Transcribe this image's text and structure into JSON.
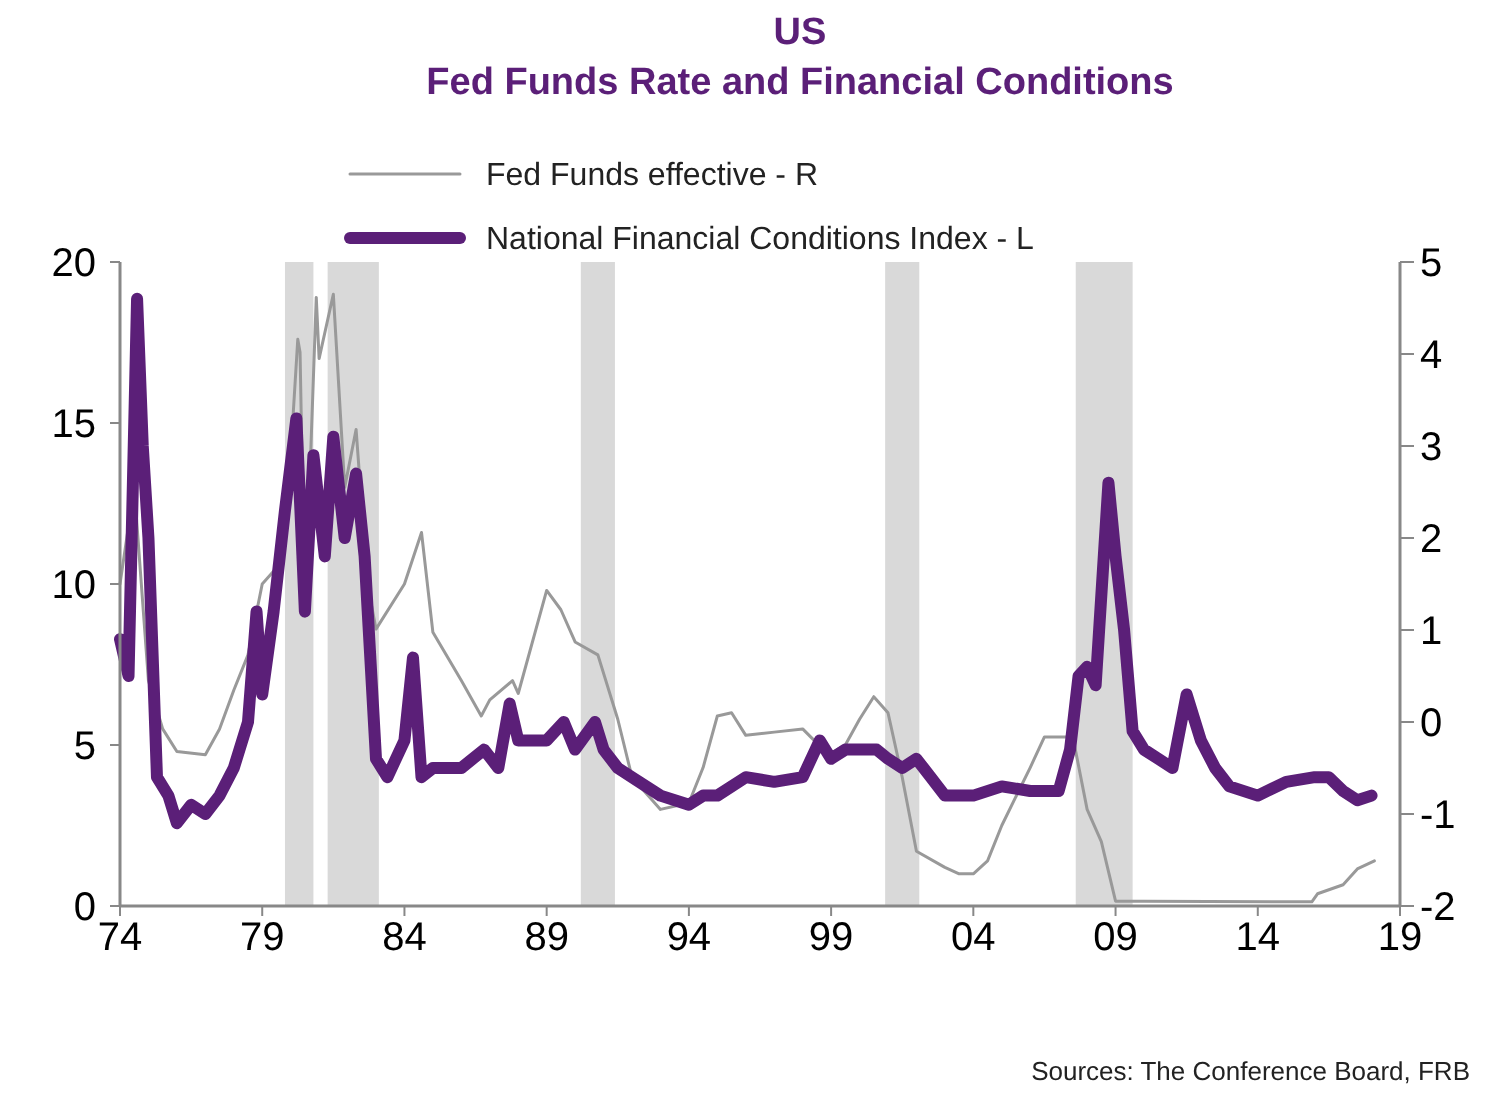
{
  "chart_data": {
    "type": "line",
    "title": "US",
    "subtitle": "Fed Funds Rate and Financial Conditions",
    "annotations": [
      "Sources: The Conference Board, FRB"
    ],
    "xlim": [
      1974,
      2019
    ],
    "xticks": [
      {
        "value": 1974,
        "label": "74"
      },
      {
        "value": 1979,
        "label": "79"
      },
      {
        "value": 1984,
        "label": "84"
      },
      {
        "value": 1989,
        "label": "89"
      },
      {
        "value": 1994,
        "label": "94"
      },
      {
        "value": 1999,
        "label": "99"
      },
      {
        "value": 2004,
        "label": "04"
      },
      {
        "value": 2009,
        "label": "09"
      },
      {
        "value": 2014,
        "label": "14"
      },
      {
        "value": 2019,
        "label": "19"
      }
    ],
    "ylim": [
      0,
      20
    ],
    "yticks": [
      0,
      5,
      10,
      15,
      20
    ],
    "y2lim": [
      -2,
      5
    ],
    "y2ticks": [
      -2,
      -1,
      0,
      1,
      2,
      3,
      4,
      5
    ],
    "grid": false,
    "legend": "top",
    "bands": [
      {
        "axis": "x",
        "from": 1979.8,
        "to": 1980.8,
        "color": "#d9d9d9"
      },
      {
        "axis": "x",
        "from": 1981.3,
        "to": 1983.1,
        "color": "#d9d9d9"
      },
      {
        "axis": "x",
        "from": 1990.2,
        "to": 1991.4,
        "color": "#d9d9d9"
      },
      {
        "axis": "x",
        "from": 2000.9,
        "to": 2002.1,
        "color": "#d9d9d9"
      },
      {
        "axis": "x",
        "from": 2007.6,
        "to": 2009.6,
        "color": "#d9d9d9"
      }
    ],
    "series": [
      {
        "name": "Fed Funds effective - R",
        "color": "#999999",
        "axis": "y",
        "x": [
          1974,
          1974.5,
          1975,
          1975.5,
          1976,
          1977,
          1977.5,
          1978,
          1978.5,
          1979,
          1979.5,
          1980,
          1980.25,
          1980.33,
          1980.5,
          1980.9,
          1981,
          1981.5,
          1981.9,
          1982.3,
          1982.7,
          1983,
          1984,
          1984.6,
          1985,
          1986,
          1986.7,
          1987,
          1987.8,
          1988,
          1989,
          1989.5,
          1990,
          1990.8,
          1991.5,
          1992,
          1993,
          1994,
          1994.5,
          1995,
          1995.5,
          1996,
          1997,
          1998,
          1998.9,
          1999.5,
          2000,
          2000.5,
          2001,
          2001.5,
          2002,
          2003,
          2003.5,
          2004,
          2004.5,
          2005,
          2006,
          2006.5,
          2007.5,
          2008,
          2008.5,
          2009,
          2010,
          2015.9,
          2016.1,
          2017,
          2017.5,
          2018.1
        ],
        "values": [
          10,
          13,
          7,
          5.5,
          4.8,
          4.7,
          5.5,
          6.7,
          7.8,
          10,
          10.5,
          14,
          17.6,
          17.2,
          9,
          18.9,
          17,
          19,
          13,
          14.8,
          10,
          8.6,
          10,
          11.6,
          8.5,
          7,
          5.9,
          6.4,
          7,
          6.6,
          9.8,
          9.2,
          8.2,
          7.8,
          5.8,
          4,
          3,
          3.2,
          4.3,
          5.9,
          6,
          5.3,
          5.4,
          5.5,
          4.7,
          5,
          5.8,
          6.5,
          6,
          4,
          1.7,
          1.2,
          1,
          1,
          1.4,
          2.5,
          4.3,
          5.25,
          5.25,
          3,
          2,
          0.15,
          0.15,
          0.13,
          0.38,
          0.66,
          1.15,
          1.4
        ]
      },
      {
        "name": "National Financial Conditions Index - L",
        "color": "#5b1f78",
        "axis": "y2",
        "x": [
          1974,
          1974.3,
          1974.6,
          1974.8,
          1975,
          1975.3,
          1975.7,
          1976,
          1976.5,
          1977,
          1977.5,
          1978,
          1978.5,
          1978.8,
          1979,
          1979.4,
          1979.8,
          1980.2,
          1980.5,
          1980.8,
          1981.2,
          1981.5,
          1981.9,
          1982.3,
          1982.6,
          1983,
          1983.4,
          1984,
          1984.3,
          1984.6,
          1985,
          1986,
          1986.8,
          1987.3,
          1987.7,
          1988,
          1989,
          1989.6,
          1990,
          1990.7,
          1991,
          1991.5,
          1992,
          1993,
          1994,
          1994.5,
          1995,
          1996,
          1997,
          1998,
          1998.6,
          1999,
          1999.5,
          2000,
          2000.6,
          2001,
          2001.5,
          2002,
          2002.5,
          2003,
          2004,
          2005,
          2006,
          2007,
          2007.4,
          2007.7,
          2008,
          2008.3,
          2008.75,
          2009,
          2009.3,
          2009.6,
          2010,
          2010.5,
          2011,
          2011.5,
          2012,
          2012.5,
          2013,
          2014,
          2015,
          2016,
          2016.5,
          2017,
          2017.5,
          2018
        ],
        "values": [
          0.9,
          0.5,
          4.6,
          3,
          2,
          -0.6,
          -0.8,
          -1.1,
          -0.9,
          -1,
          -0.8,
          -0.5,
          0,
          1.2,
          0.3,
          1.2,
          2.3,
          3.3,
          1.2,
          2.9,
          1.8,
          3.1,
          2,
          2.7,
          1.8,
          -0.4,
          -0.6,
          -0.2,
          0.7,
          -0.6,
          -0.5,
          -0.5,
          -0.3,
          -0.5,
          0.2,
          -0.2,
          -0.2,
          0,
          -0.3,
          0,
          -0.3,
          -0.5,
          -0.6,
          -0.8,
          -0.9,
          -0.8,
          -0.8,
          -0.6,
          -0.65,
          -0.6,
          -0.2,
          -0.4,
          -0.3,
          -0.3,
          -0.3,
          -0.4,
          -0.5,
          -0.4,
          -0.6,
          -0.8,
          -0.8,
          -0.7,
          -0.75,
          -0.75,
          -0.3,
          0.5,
          0.6,
          0.4,
          2.6,
          1.8,
          1,
          -0.1,
          -0.3,
          -0.4,
          -0.5,
          0.3,
          -0.2,
          -0.5,
          -0.7,
          -0.8,
          -0.65,
          -0.6,
          -0.6,
          -0.75,
          -0.85,
          -0.8
        ]
      }
    ]
  }
}
